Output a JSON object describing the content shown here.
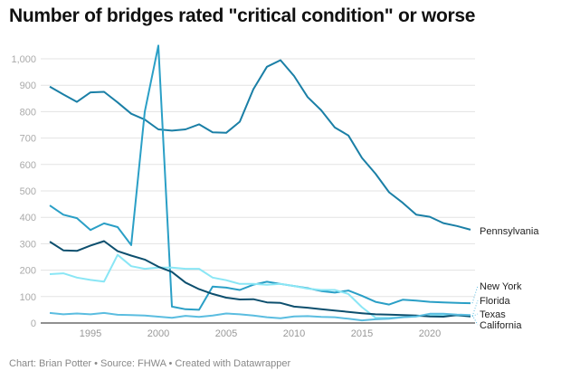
{
  "title": "Number of bridges rated \"critical condition\" or worse",
  "footer": "Chart: Brian Potter • Source: FHWA • Created with Datawrapper",
  "chart_data": {
    "type": "line",
    "title": "Number of bridges rated \"critical condition\" or worse",
    "xlabel": "",
    "ylabel": "",
    "ylim": [
      0,
      1000
    ],
    "xlim": [
      1992,
      2023
    ],
    "grid": true,
    "legend": "direct labels at line ends",
    "yticks": [
      0,
      100,
      200,
      300,
      400,
      500,
      600,
      700,
      800,
      900,
      1000
    ],
    "ytick_labels": [
      "0",
      "100",
      "200",
      "300",
      "400",
      "500",
      "600",
      "700",
      "800",
      "900",
      "1,000"
    ],
    "xticks": [
      1995,
      2000,
      2005,
      2010,
      2015,
      2020
    ],
    "x": [
      1992,
      1993,
      1994,
      1995,
      1996,
      1997,
      1998,
      1999,
      2000,
      2001,
      2002,
      2003,
      2004,
      2005,
      2006,
      2007,
      2008,
      2009,
      2010,
      2011,
      2012,
      2013,
      2014,
      2015,
      2016,
      2017,
      2018,
      2019,
      2020,
      2021,
      2022,
      2023
    ],
    "series": [
      {
        "name": "Pennsylvania",
        "color": "#1a7fa6",
        "values": [
          895,
          865,
          837,
          873,
          875,
          835,
          792,
          770,
          733,
          728,
          733,
          752,
          722,
          720,
          762,
          885,
          970,
          995,
          935,
          855,
          805,
          740,
          710,
          625,
          565,
          495,
          455,
          410,
          402,
          378,
          367,
          353
        ]
      },
      {
        "name": "New York",
        "color": "#2a9fc6",
        "values": [
          445,
          410,
          397,
          352,
          377,
          363,
          295,
          800,
          1050,
          62,
          52,
          50,
          138,
          134,
          125,
          145,
          156,
          148,
          140,
          132,
          121,
          115,
          123,
          103,
          80,
          70,
          88,
          85,
          80,
          78,
          76,
          75
        ]
      },
      {
        "name": "Florida",
        "color": "#8ae6f5",
        "values": [
          185,
          188,
          172,
          163,
          157,
          258,
          215,
          205,
          210,
          210,
          205,
          205,
          172,
          162,
          148,
          148,
          145,
          148,
          140,
          130,
          125,
          125,
          110,
          60,
          20,
          20,
          22,
          25,
          30,
          30,
          28,
          25
        ]
      },
      {
        "name": "Texas",
        "color": "#0d4f6e",
        "values": [
          308,
          275,
          273,
          293,
          310,
          272,
          255,
          240,
          213,
          193,
          153,
          128,
          110,
          96,
          89,
          90,
          78,
          76,
          62,
          58,
          52,
          47,
          42,
          37,
          33,
          32,
          30,
          28,
          25,
          24,
          30,
          25
        ]
      },
      {
        "name": "California",
        "color": "#5bbde0",
        "values": [
          38,
          33,
          36,
          33,
          38,
          31,
          30,
          28,
          24,
          20,
          27,
          23,
          28,
          36,
          33,
          28,
          22,
          18,
          25,
          26,
          23,
          22,
          16,
          10,
          14,
          16,
          22,
          25,
          35,
          35,
          32,
          30
        ]
      }
    ]
  }
}
